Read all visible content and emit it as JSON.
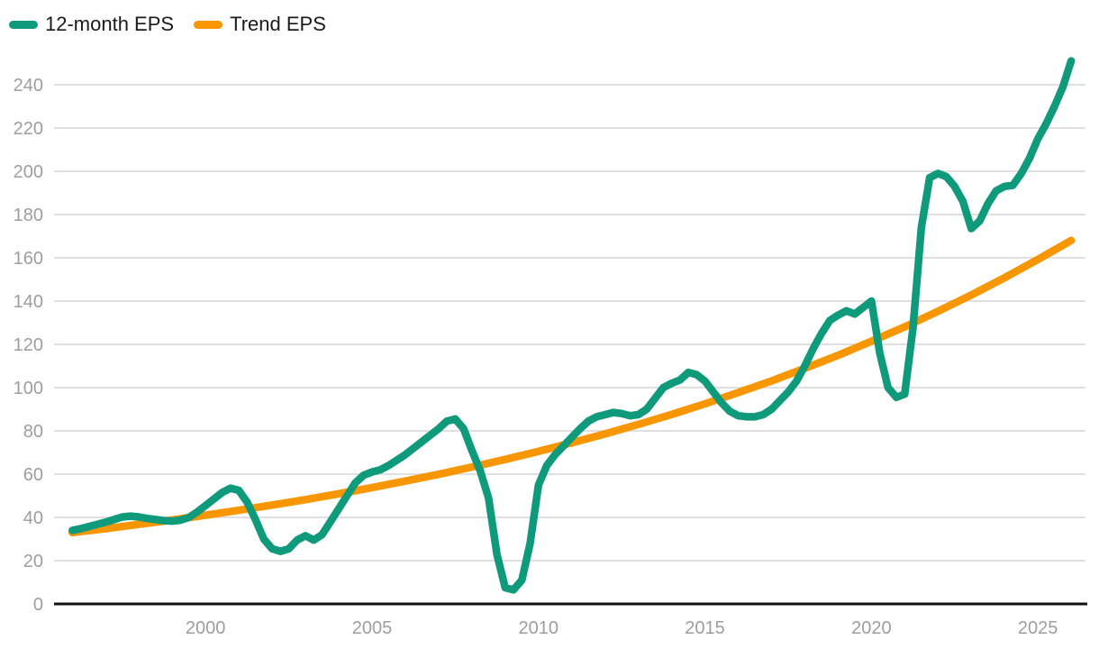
{
  "legend": [
    {
      "label": "12-month EPS",
      "color": "#0f9b7b",
      "swatch_icon": "line-swatch"
    },
    {
      "label": "Trend EPS",
      "color": "#f89600",
      "swatch_icon": "line-swatch"
    }
  ],
  "chart_data": {
    "type": "line",
    "title": "",
    "xlabel": "",
    "ylabel": "",
    "grid": "horizontal",
    "legend_position": "top-left",
    "xlim": [
      1995.45,
      2026.43
    ],
    "ylim": [
      0,
      254.17
    ],
    "x_ticks": [
      2000,
      2005,
      2010,
      2015,
      2020,
      2025
    ],
    "y_ticks": [
      0,
      20,
      40,
      60,
      80,
      100,
      120,
      140,
      160,
      180,
      200,
      220,
      240
    ],
    "style": {
      "grid_color": "#e0e0e0",
      "axis_color": "#111111",
      "tick_color": "#9e9e9e",
      "background": "#ffffff"
    },
    "series": [
      {
        "name": "12-month EPS",
        "color": "#0f9b7b",
        "x": [
          1996,
          1996.25,
          1996.5,
          1996.75,
          1997,
          1997.25,
          1997.5,
          1997.75,
          1998,
          1998.25,
          1998.5,
          1998.75,
          1999,
          1999.25,
          1999.5,
          1999.75,
          2000,
          2000.25,
          2000.5,
          2000.75,
          2001,
          2001.25,
          2001.5,
          2001.75,
          2002,
          2002.25,
          2002.5,
          2002.75,
          2003,
          2003.25,
          2003.5,
          2003.75,
          2004,
          2004.25,
          2004.5,
          2004.75,
          2005,
          2005.25,
          2005.5,
          2005.75,
          2006,
          2006.25,
          2006.5,
          2006.75,
          2007,
          2007.25,
          2007.5,
          2007.75,
          2008,
          2008.25,
          2008.5,
          2008.75,
          2009,
          2009.25,
          2009.5,
          2009.75,
          2010,
          2010.25,
          2010.5,
          2010.75,
          2011,
          2011.25,
          2011.5,
          2011.75,
          2012,
          2012.25,
          2012.5,
          2012.75,
          2013,
          2013.25,
          2013.5,
          2013.75,
          2014,
          2014.25,
          2014.5,
          2014.75,
          2015,
          2015.25,
          2015.5,
          2015.75,
          2016,
          2016.25,
          2016.5,
          2016.75,
          2017,
          2017.25,
          2017.5,
          2017.75,
          2018,
          2018.25,
          2018.5,
          2018.75,
          2019,
          2019.25,
          2019.5,
          2019.75,
          2020,
          2020.25,
          2020.5,
          2020.75,
          2021,
          2021.25,
          2021.5,
          2021.75,
          2022,
          2022.25,
          2022.5,
          2022.75,
          2023,
          2023.25,
          2023.5,
          2023.75,
          2024,
          2024.25,
          2024.5,
          2024.75,
          2025,
          2025.25,
          2025.5,
          2025.75,
          2026
        ],
        "y": [
          34,
          34.8,
          35.8,
          36.8,
          37.8,
          39,
          40.2,
          40.6,
          40.2,
          39.5,
          39,
          38.5,
          38.3,
          38.7,
          40,
          42.5,
          45.5,
          48.5,
          51.5,
          53.5,
          52.5,
          47,
          39,
          30,
          25.5,
          24.3,
          25.5,
          29.5,
          31.5,
          29.5,
          32,
          38,
          44,
          50,
          56,
          59.5,
          61,
          62,
          64,
          66.5,
          69,
          72,
          75,
          78,
          81,
          84.5,
          85.5,
          81,
          71,
          61.5,
          49,
          23,
          7.5,
          6.5,
          11,
          28,
          55,
          64,
          69,
          73,
          77,
          81,
          84.5,
          86.5,
          87.5,
          88.5,
          88,
          87,
          87.5,
          90,
          95,
          100,
          102,
          103.5,
          107,
          106,
          103,
          98,
          93,
          89,
          87,
          86.5,
          86.5,
          87.5,
          90,
          94,
          98,
          103,
          110,
          118,
          125,
          131,
          133.5,
          135.5,
          134,
          137,
          140,
          116,
          100,
          95.5,
          97,
          128,
          174,
          197,
          199,
          197.5,
          193,
          186,
          173.5,
          177,
          185,
          191,
          193,
          193.5,
          199,
          206,
          215,
          222,
          230,
          239,
          251
        ]
      },
      {
        "name": "Trend EPS",
        "color": "#f89600",
        "x": [
          1996,
          1997,
          1998,
          1999,
          2000,
          2001,
          2002,
          2003,
          2004,
          2005,
          2006,
          2007,
          2008,
          2009,
          2010,
          2011,
          2012,
          2013,
          2014,
          2015,
          2016,
          2017,
          2018,
          2019,
          2020,
          2021,
          2022,
          2023,
          2024,
          2025,
          2026
        ],
        "y": [
          33,
          34.8,
          36.8,
          38.8,
          41,
          43.3,
          45.7,
          48.2,
          50.9,
          53.8,
          56.8,
          59.9,
          63.3,
          66.8,
          70.5,
          74.5,
          78.6,
          83,
          87.6,
          92.5,
          97.7,
          103.1,
          108.9,
          114.9,
          121.4,
          128.1,
          135.3,
          142.8,
          150.8,
          159.2,
          168
        ]
      }
    ]
  }
}
